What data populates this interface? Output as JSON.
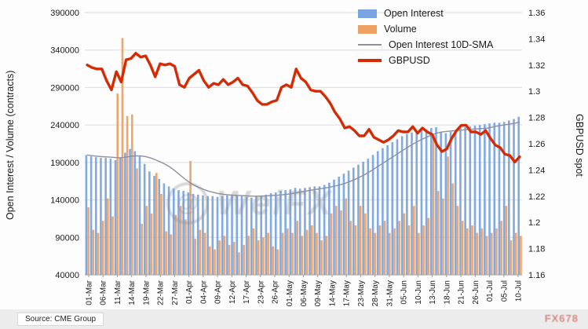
{
  "source_label": "Source: CME Group",
  "watermark": {
    "center_text": "WeiFX",
    "corner_text": "FX678"
  },
  "chart_data": {
    "type": "bar",
    "note": "combo chart: clustered bars on left axis + two lines (one on right axis)",
    "title": "",
    "grid": true,
    "legend_position": "top-right-inside",
    "left_axis": {
      "label": "Open Interest / Volume (contracts)",
      "min": 40000,
      "max": 390000,
      "step": 50000
    },
    "right_axis": {
      "label": "GBPUSD spot",
      "min": 1.16,
      "max": 1.36,
      "step": 0.02
    },
    "x_tick_labels": [
      "01-Mar",
      "06-Mar",
      "11-Mar",
      "14-Mar",
      "19-Mar",
      "22-Mar",
      "27-Mar",
      "01-Apr",
      "04-Apr",
      "09-Apr",
      "12-Apr",
      "17-Apr",
      "23-Apr",
      "26-Apr",
      "01-May",
      "06-May",
      "09-May",
      "14-May",
      "17-May",
      "23-May",
      "28-May",
      "31-May",
      "05-Jun",
      "10-Jun",
      "13-Jun",
      "18-Jun",
      "21-Jun",
      "26-Jun",
      "01-Jul",
      "05-Jul",
      "10-Jul"
    ],
    "x_dates": [
      "01-Mar",
      "04-Mar",
      "05-Mar",
      "06-Mar",
      "07-Mar",
      "08-Mar",
      "11-Mar",
      "12-Mar",
      "13-Mar",
      "14-Mar",
      "15-Mar",
      "18-Mar",
      "19-Mar",
      "20-Mar",
      "21-Mar",
      "22-Mar",
      "25-Mar",
      "26-Mar",
      "27-Mar",
      "28-Mar",
      "29-Mar",
      "01-Apr",
      "02-Apr",
      "03-Apr",
      "04-Apr",
      "05-Apr",
      "08-Apr",
      "09-Apr",
      "10-Apr",
      "11-Apr",
      "12-Apr",
      "15-Apr",
      "16-Apr",
      "17-Apr",
      "18-Apr",
      "23-Apr",
      "24-Apr",
      "25-Apr",
      "26-Apr",
      "29-Apr",
      "30-Apr",
      "01-May",
      "02-May",
      "03-May",
      "06-May",
      "07-May",
      "08-May",
      "09-May",
      "10-May",
      "13-May",
      "14-May",
      "15-May",
      "16-May",
      "17-May",
      "20-May",
      "21-May",
      "22-May",
      "23-May",
      "24-May",
      "28-May",
      "29-May",
      "30-May",
      "31-May",
      "03-Jun",
      "04-Jun",
      "05-Jun",
      "06-Jun",
      "07-Jun",
      "10-Jun",
      "11-Jun",
      "12-Jun",
      "13-Jun",
      "14-Jun",
      "17-Jun",
      "18-Jun",
      "19-Jun",
      "20-Jun",
      "21-Jun",
      "24-Jun",
      "25-Jun",
      "26-Jun",
      "27-Jun",
      "28-Jun",
      "01-Jul",
      "02-Jul",
      "03-Jul",
      "05-Jul",
      "08-Jul",
      "09-Jul",
      "10-Jul"
    ],
    "series": [
      {
        "name": "Open Interest",
        "kind": "bar",
        "axis": "left",
        "color": "#7aa4e0",
        "values": [
          200000,
          198000,
          197000,
          196000,
          196000,
          195000,
          193000,
          196000,
          203000,
          208000,
          205000,
          198000,
          188000,
          178000,
          172000,
          168000,
          162000,
          158000,
          155000,
          153000,
          152000,
          150000,
          148000,
          147000,
          146000,
          145000,
          145000,
          144000,
          145000,
          146000,
          147000,
          146000,
          145000,
          144000,
          143000,
          145000,
          146000,
          147000,
          149000,
          150000,
          152000,
          153000,
          154000,
          156000,
          155000,
          156000,
          157000,
          158000,
          158000,
          160000,
          163000,
          167000,
          171000,
          175000,
          179000,
          183000,
          187000,
          191000,
          195000,
          200000,
          205000,
          209000,
          213000,
          217000,
          221000,
          225000,
          228000,
          230000,
          231000,
          233000,
          234000,
          236000,
          237000,
          231000,
          229000,
          231000,
          233000,
          236000,
          237000,
          238000,
          239000,
          240000,
          241000,
          242000,
          243000,
          243000,
          244000,
          246000,
          248000,
          251000
        ]
      },
      {
        "name": "Volume",
        "kind": "bar",
        "axis": "left",
        "color": "#eda164",
        "values": [
          130000,
          100000,
          96000,
          112000,
          142000,
          118000,
          282000,
          356000,
          252000,
          254000,
          182000,
          108000,
          132000,
          122000,
          176000,
          148000,
          98000,
          94000,
          120000,
          132000,
          114000,
          192000,
          88000,
          100000,
          96000,
          78000,
          74000,
          86000,
          92000,
          80000,
          84000,
          70000,
          80000,
          92000,
          102000,
          86000,
          90000,
          96000,
          78000,
          74000,
          96000,
          102000,
          96000,
          112000,
          92000,
          100000,
          106000,
          96000,
          86000,
          92000,
          122000,
          132000,
          126000,
          142000,
          112000,
          106000,
          132000,
          122000,
          102000,
          96000,
          106000,
          112000,
          96000,
          102000,
          112000,
          122000,
          106000,
          132000,
          96000,
          106000,
          116000,
          222000,
          152000,
          142000,
          198000,
          162000,
          132000,
          112000,
          102000,
          106000,
          96000,
          102000,
          92000,
          96000,
          102000,
          112000,
          132000,
          86000,
          96000,
          92000
        ]
      },
      {
        "name": "Open Interest 10D-SMA",
        "kind": "line",
        "axis": "left",
        "color": "#90909c",
        "derived": "10-day simple moving average of Open Interest"
      },
      {
        "name": "GBPUSD",
        "kind": "line",
        "axis": "right",
        "color": "#d52b05",
        "values": [
          1.32,
          1.318,
          1.317,
          1.317,
          1.308,
          1.301,
          1.315,
          1.307,
          1.324,
          1.325,
          1.329,
          1.326,
          1.327,
          1.32,
          1.311,
          1.321,
          1.32,
          1.321,
          1.319,
          1.305,
          1.303,
          1.31,
          1.313,
          1.316,
          1.308,
          1.303,
          1.306,
          1.305,
          1.309,
          1.305,
          1.307,
          1.31,
          1.305,
          1.304,
          1.299,
          1.293,
          1.29,
          1.29,
          1.292,
          1.293,
          1.303,
          1.305,
          1.303,
          1.317,
          1.31,
          1.307,
          1.301,
          1.3,
          1.3,
          1.296,
          1.291,
          1.284,
          1.279,
          1.272,
          1.273,
          1.27,
          1.266,
          1.266,
          1.271,
          1.265,
          1.263,
          1.261,
          1.263,
          1.266,
          1.27,
          1.269,
          1.269,
          1.273,
          1.268,
          1.272,
          1.269,
          1.267,
          1.259,
          1.254,
          1.256,
          1.264,
          1.27,
          1.274,
          1.274,
          1.269,
          1.269,
          1.267,
          1.27,
          1.264,
          1.259,
          1.257,
          1.252,
          1.251,
          1.246,
          1.25
        ]
      }
    ]
  }
}
